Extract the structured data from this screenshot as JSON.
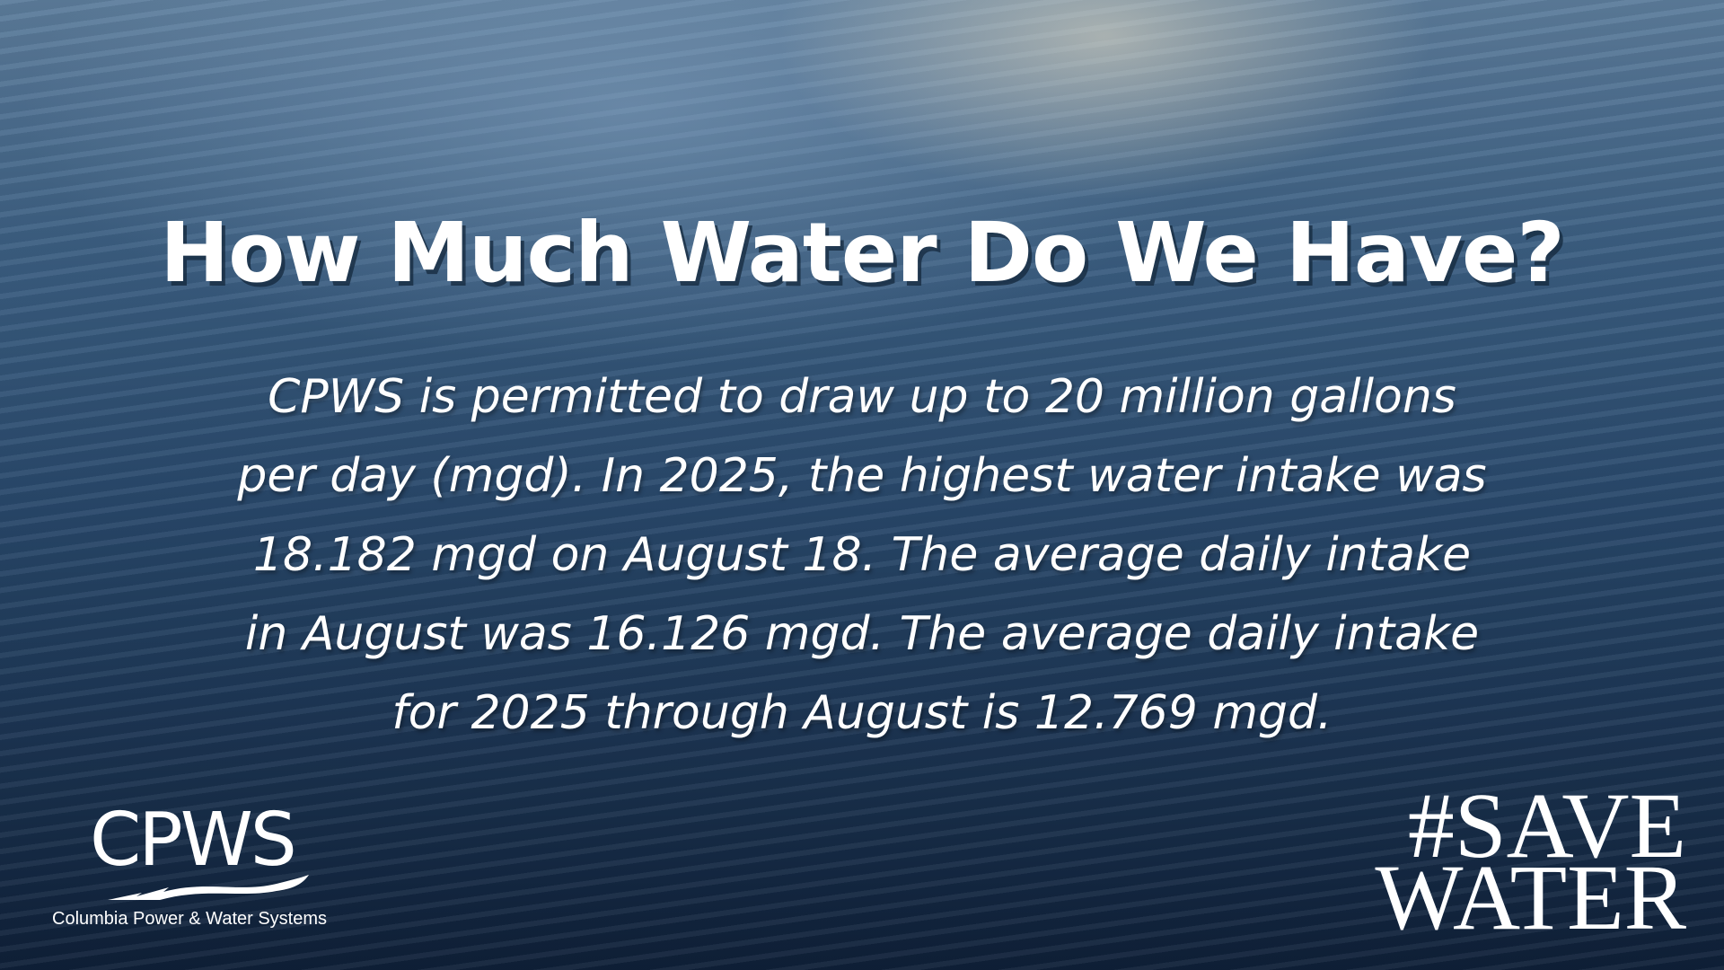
{
  "title": "How Much Water Do We Have?",
  "body": {
    "lines": [
      "CPWS is permitted to draw up to 20 million gallons",
      "per day (mgd). In 2025, the highest water intake was",
      "18.182 mgd on August 18. The average daily intake",
      "in August was 16.126 mgd. The average daily intake",
      "for 2025 through August is 12.769 mgd."
    ]
  },
  "logo": {
    "name": "CPWS",
    "subtitle": "Columbia Power & Water Systems"
  },
  "hashtag": {
    "lines": [
      "#SAVE",
      "WATER"
    ]
  }
}
